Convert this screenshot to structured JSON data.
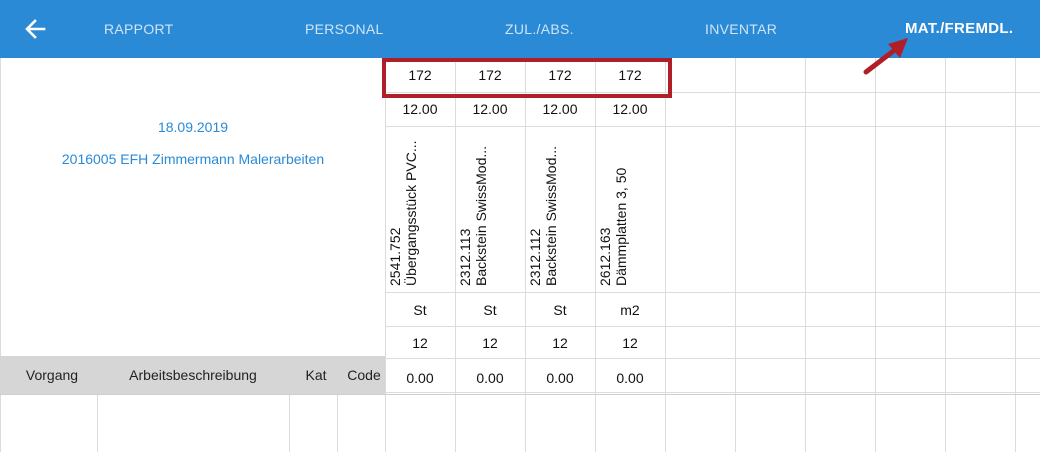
{
  "topbar": {
    "tabs": [
      {
        "label": "RAPPORT"
      },
      {
        "label": "PERSONAL"
      },
      {
        "label": "ZUL./ABS."
      },
      {
        "label": "INVENTAR"
      },
      {
        "label": "MAT./FREMDL."
      }
    ]
  },
  "info": {
    "date": "18.09.2019",
    "project": "2016005 EFH Zimmermann Malerarbeiten"
  },
  "table_header": {
    "vorgang": "Vorgang",
    "arbeitsbeschreibung": "Arbeitsbeschreibung",
    "kat": "Kat",
    "code": "Code"
  },
  "materials": [
    {
      "count": "172",
      "price": "12.00",
      "number": "2541.752",
      "name": "Übergangsstück PVC...",
      "unit": "St",
      "qty": "12",
      "total": "0.00"
    },
    {
      "count": "172",
      "price": "12.00",
      "number": "2312.113",
      "name": "Backstein SwissMod...",
      "unit": "St",
      "qty": "12",
      "total": "0.00"
    },
    {
      "count": "172",
      "price": "12.00",
      "number": "2312.112",
      "name": "Backstein SwissMod...",
      "unit": "St",
      "qty": "12",
      "total": "0.00"
    },
    {
      "count": "172",
      "price": "12.00",
      "number": "2612.163",
      "name": "Dämmplatten 3, 50",
      "unit": "m2",
      "qty": "12",
      "total": "0.00"
    }
  ],
  "colors": {
    "accent": "#2a8ad6",
    "highlight": "#b01e28",
    "header_bg": "#d6d6d6"
  }
}
